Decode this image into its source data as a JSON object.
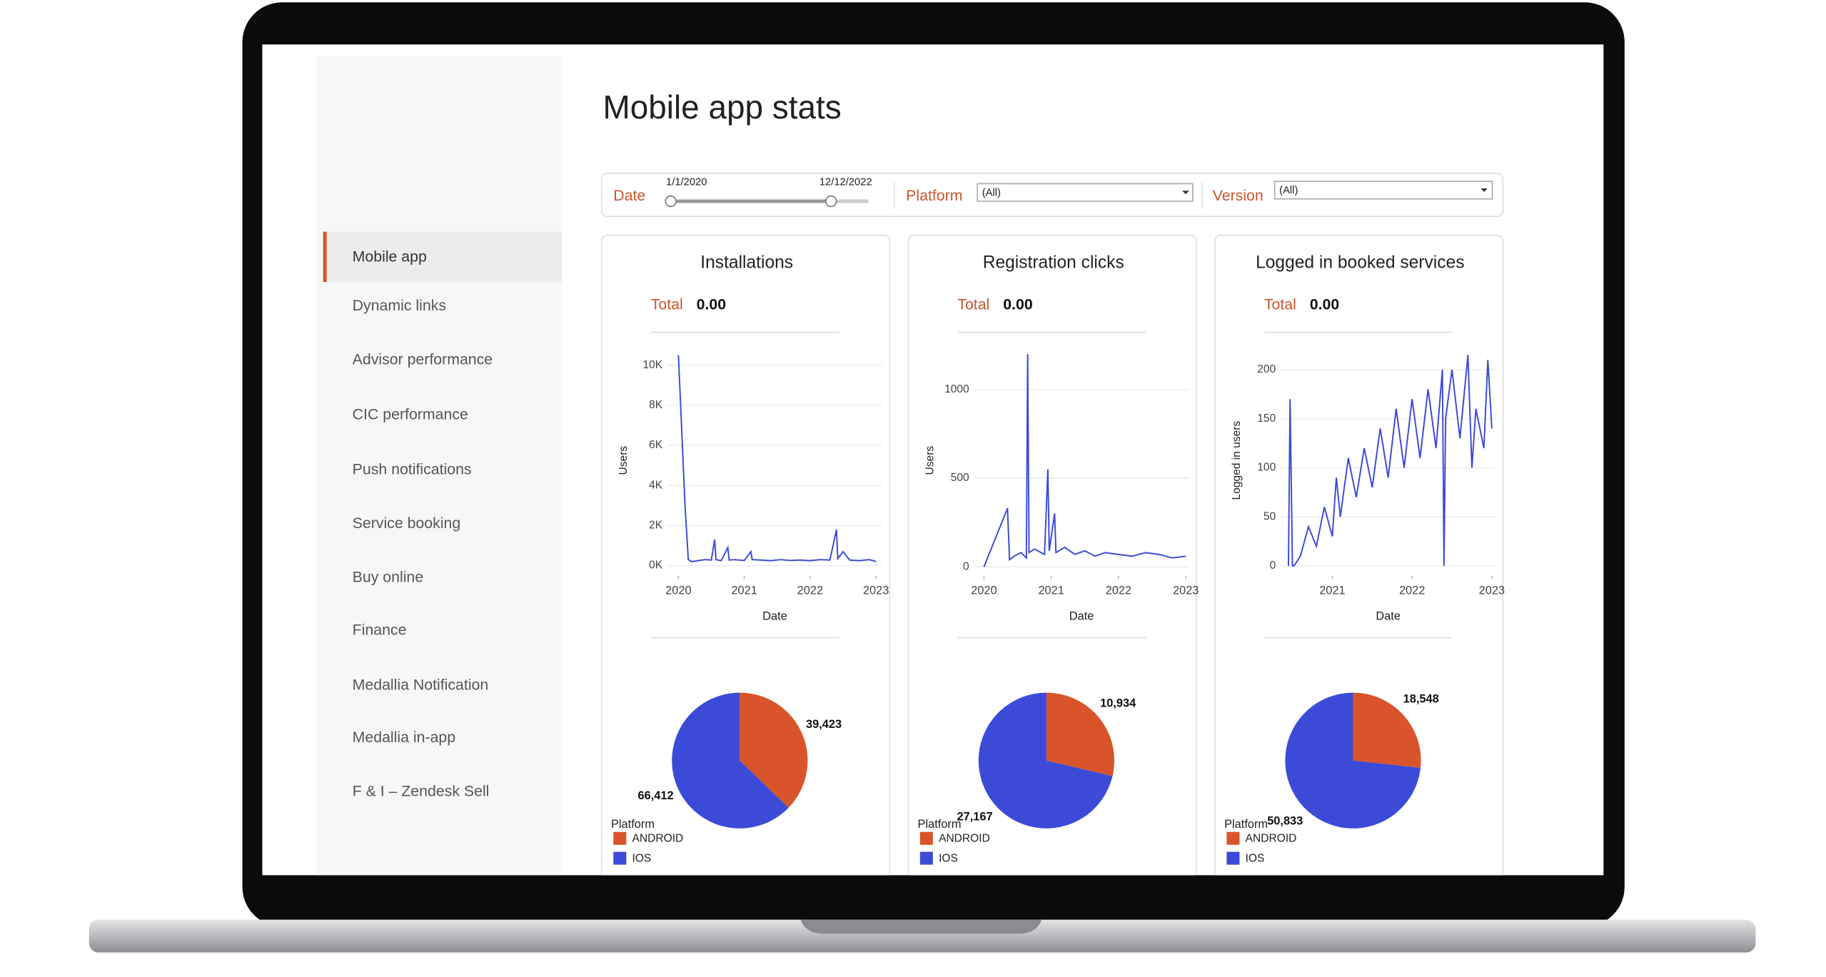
{
  "header": {
    "title": "Mobile app stats"
  },
  "sidebar": {
    "items": [
      "Mobile app",
      "Dynamic links",
      "Advisor performance",
      "CIC performance",
      "Push notifications",
      "Service booking",
      "Buy online",
      "Finance",
      "Medallia Notification",
      "Medallia in-app",
      "F & I – Zendesk Sell"
    ]
  },
  "filters": {
    "date": {
      "label": "Date",
      "start": "1/1/2020",
      "end": "12/12/2022"
    },
    "platform": {
      "label": "Platform",
      "value": "(All)"
    },
    "version": {
      "label": "Version",
      "value": "(All)"
    }
  },
  "panels": [
    {
      "title": "Installations",
      "total_label": "Total",
      "total": "0.00",
      "line_chart": {
        "type": "line",
        "color": "#3b4bd8",
        "x_label": "Date",
        "y_label": "Users",
        "x": [
          2020.0,
          2020.02,
          2020.1,
          2020.15,
          2020.2,
          2020.3,
          2020.4,
          2020.5,
          2020.55,
          2020.57,
          2020.65,
          2020.75,
          2020.77,
          2020.85,
          2021.0,
          2021.1,
          2021.12,
          2021.25,
          2021.4,
          2021.55,
          2021.7,
          2021.85,
          2022.0,
          2022.15,
          2022.3,
          2022.4,
          2022.42,
          2022.5,
          2022.6,
          2022.75,
          2022.9,
          2023.0
        ],
        "values": [
          10500,
          9000,
          3000,
          300,
          200,
          250,
          300,
          280,
          1300,
          300,
          250,
          900,
          280,
          300,
          260,
          700,
          300,
          280,
          250,
          300,
          260,
          280,
          250,
          300,
          280,
          1800,
          350,
          700,
          280,
          250,
          300,
          200
        ],
        "xlim": [
          2019.83,
          2023.1
        ],
        "ylim": [
          -500,
          11000
        ],
        "xticks": [
          2020,
          2021,
          2022,
          2023
        ],
        "yticks": [
          {
            "value": 0,
            "label": "0K"
          },
          {
            "value": 2000,
            "label": "2K"
          },
          {
            "value": 4000,
            "label": "4K"
          },
          {
            "value": 6000,
            "label": "6K"
          },
          {
            "value": 8000,
            "label": "8K"
          },
          {
            "value": 10000,
            "label": "10K"
          }
        ],
        "grid": true
      },
      "pie_chart": {
        "type": "pie",
        "legend_title": "Platform",
        "categories": [
          "ANDROID",
          "IOS"
        ],
        "colors": [
          "#d9542a",
          "#3b4bd8"
        ],
        "values": [
          39423,
          66412
        ],
        "value_labels": [
          "39,423",
          "66,412"
        ]
      }
    },
    {
      "title": "Registration clicks",
      "total_label": "Total",
      "total": "0.00",
      "line_chart": {
        "type": "line",
        "color": "#3b4bd8",
        "x_label": "Date",
        "y_label": "Users",
        "x": [
          2020.0,
          2020.35,
          2020.38,
          2020.45,
          2020.55,
          2020.63,
          2020.65,
          2020.67,
          2020.75,
          2020.9,
          2020.95,
          2020.97,
          2021.05,
          2021.07,
          2021.2,
          2021.35,
          2021.5,
          2021.65,
          2021.8,
          2022.0,
          2022.2,
          2022.4,
          2022.6,
          2022.8,
          2023.0
        ],
        "values": [
          0,
          330,
          40,
          60,
          80,
          50,
          1200,
          80,
          100,
          70,
          550,
          90,
          300,
          80,
          110,
          70,
          90,
          60,
          80,
          70,
          60,
          80,
          70,
          50,
          60
        ],
        "xlim": [
          2019.85,
          2023.05
        ],
        "ylim": [
          -50,
          1250
        ],
        "xticks": [
          2020,
          2021,
          2022,
          2023
        ],
        "yticks": [
          0,
          500,
          1000
        ],
        "grid": true
      },
      "pie_chart": {
        "type": "pie",
        "legend_title": "Platform",
        "categories": [
          "ANDROID",
          "IOS"
        ],
        "colors": [
          "#d9542a",
          "#3b4bd8"
        ],
        "values": [
          10934,
          27167
        ],
        "value_labels": [
          "10,934",
          "27,167"
        ]
      }
    },
    {
      "title": "Logged in booked services",
      "total_label": "Total",
      "total": "0.00",
      "line_chart": {
        "type": "line",
        "color": "#3b4bd8",
        "x_label": "Date",
        "y_label": "Logged in users",
        "x": [
          2020.45,
          2020.47,
          2020.5,
          2020.52,
          2020.6,
          2020.7,
          2020.8,
          2020.9,
          2021.0,
          2021.05,
          2021.1,
          2021.2,
          2021.3,
          2021.4,
          2021.5,
          2021.6,
          2021.7,
          2021.8,
          2021.9,
          2022.0,
          2022.1,
          2022.2,
          2022.3,
          2022.38,
          2022.4,
          2022.42,
          2022.5,
          2022.6,
          2022.7,
          2022.75,
          2022.8,
          2022.9,
          2022.95,
          2023.0
        ],
        "values": [
          0,
          170,
          0,
          0,
          10,
          40,
          20,
          60,
          30,
          90,
          50,
          110,
          70,
          120,
          80,
          140,
          90,
          160,
          100,
          170,
          110,
          180,
          120,
          200,
          0,
          150,
          200,
          130,
          215,
          100,
          160,
          120,
          210,
          140
        ],
        "xlim": [
          2020.35,
          2023.05
        ],
        "ylim": [
          -10,
          225
        ],
        "xticks": [
          2021,
          2022,
          2023
        ],
        "yticks": [
          0,
          50,
          100,
          150,
          200
        ],
        "grid": true
      },
      "pie_chart": {
        "type": "pie",
        "legend_title": "Platform",
        "categories": [
          "ANDROID",
          "IOS"
        ],
        "colors": [
          "#d9542a",
          "#3b4bd8"
        ],
        "values": [
          18548,
          50833
        ],
        "value_labels": [
          "18,548",
          "50,833"
        ]
      }
    }
  ]
}
